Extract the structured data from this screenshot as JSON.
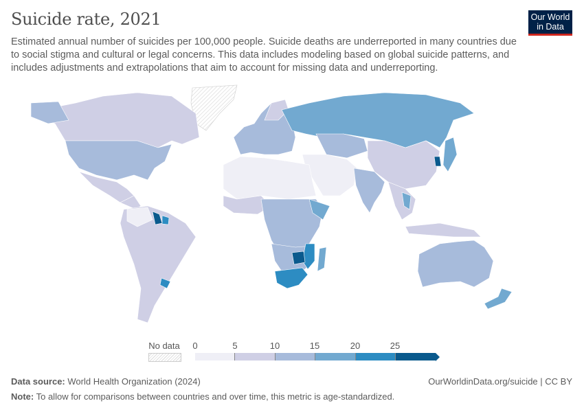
{
  "header": {
    "title": "Suicide rate, 2021",
    "subtitle": "Estimated annual number of suicides per 100,000 people. Suicide deaths are underreported in many countries due to social stigma and cultural or legal concerns. This data includes modeling based on global suicide patterns, and includes adjustments and extrapolations that aim to account for missing data and underreporting.",
    "logo": "Our World in Data"
  },
  "legend": {
    "no_data_label": "No data",
    "ticks": [
      "0",
      "5",
      "10",
      "15",
      "20",
      "25"
    ],
    "bins": [
      {
        "range": "0-5",
        "color": "#efeff6"
      },
      {
        "range": "5-10",
        "color": "#cfcfe5"
      },
      {
        "range": "10-15",
        "color": "#a7bbdb"
      },
      {
        "range": "15-20",
        "color": "#72a9d0"
      },
      {
        "range": "20-25",
        "color": "#2d8cc2"
      },
      {
        "range": ">25",
        "color": "#0a5a8d"
      }
    ]
  },
  "footer": {
    "source_label": "Data source:",
    "source": "World Health Organization (2024)",
    "note_label": "Note:",
    "note": "To allow for comparisons between countries and over time, this metric is age-standardized.",
    "link": "OurWorldinData.org/suicide | CC BY"
  }
}
